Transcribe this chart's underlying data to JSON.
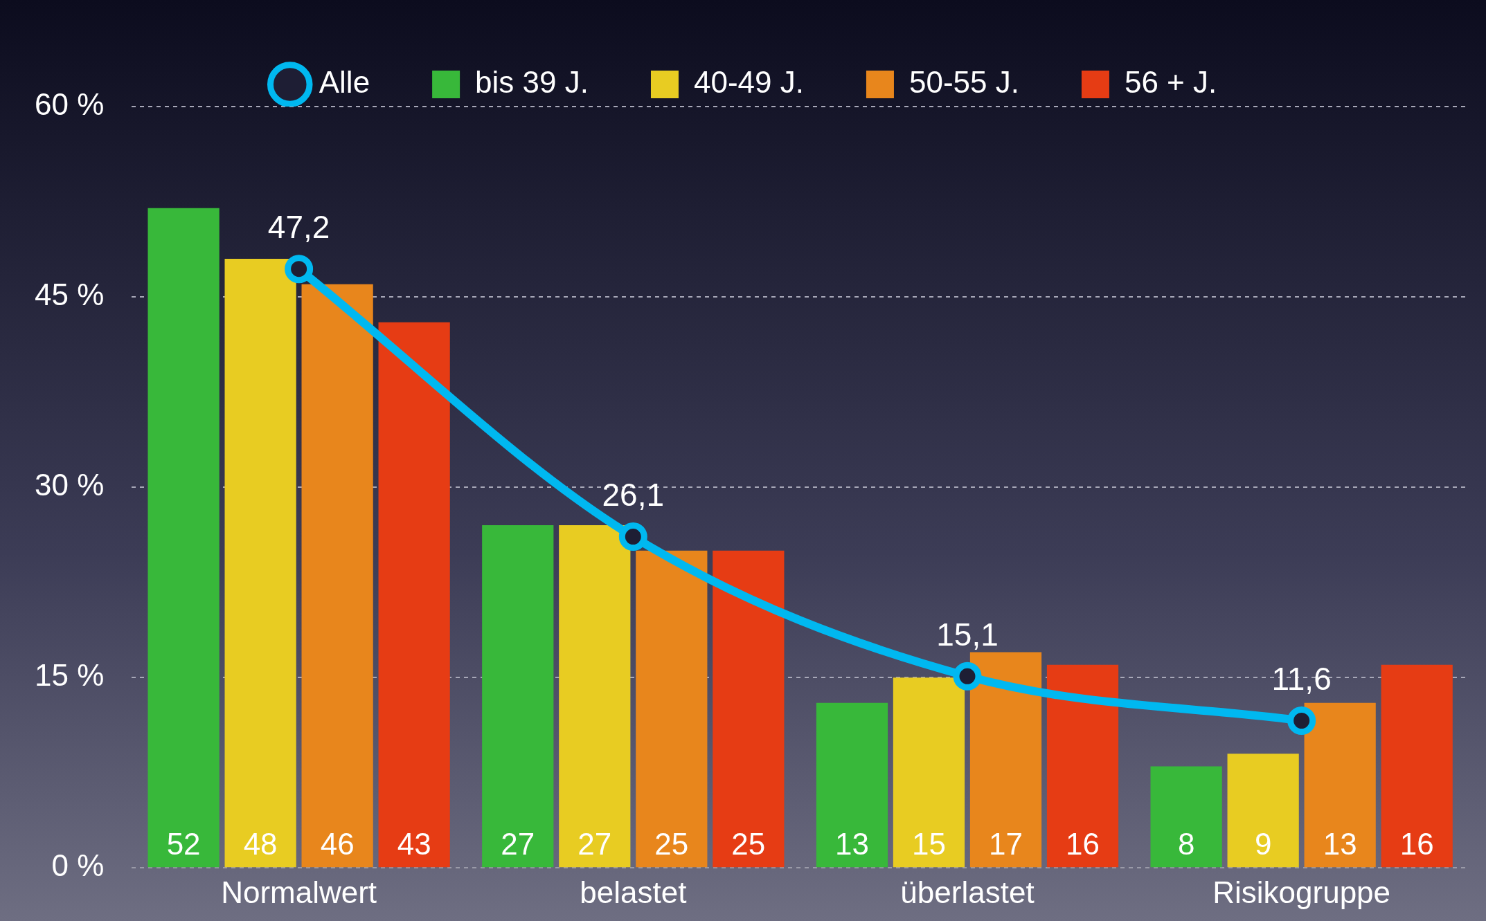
{
  "chart_data": {
    "type": "bar",
    "categories": [
      "Normalwert",
      "belastet",
      "überlastet",
      "Risikogruppe"
    ],
    "series": [
      {
        "name": "Alle",
        "type": "line",
        "color": "#00b8f0",
        "values": [
          47.2,
          26.1,
          15.1,
          11.6
        ],
        "value_labels": [
          "47,2",
          "26,1",
          "15,1",
          "11,6"
        ]
      },
      {
        "name": "bis 39 J.",
        "color": "#38b83a",
        "values": [
          52,
          27,
          13,
          8
        ],
        "value_labels": [
          "52",
          "27",
          "13",
          "8"
        ]
      },
      {
        "name": "40-49 J.",
        "color": "#e8cc22",
        "values": [
          48,
          27,
          15,
          9
        ],
        "value_labels": [
          "48",
          "27",
          "15",
          "9"
        ]
      },
      {
        "name": "50-55 J.",
        "color": "#e8861c",
        "values": [
          46,
          25,
          17,
          13
        ],
        "value_labels": [
          "46",
          "25",
          "17",
          "13"
        ]
      },
      {
        "name": "56 + J.",
        "color": "#e63c14",
        "values": [
          43,
          25,
          16,
          16
        ],
        "value_labels": [
          "43",
          "25",
          "16",
          "16"
        ]
      }
    ],
    "ylim": [
      0,
      60
    ],
    "yticks": [
      {
        "value": 0,
        "label": "0 %"
      },
      {
        "value": 15,
        "label": "15 %"
      },
      {
        "value": 30,
        "label": "30 %"
      },
      {
        "value": 45,
        "label": "45 %"
      },
      {
        "value": 60,
        "label": "60 %"
      }
    ],
    "grid": "y",
    "legend": "top",
    "marker": "circle"
  }
}
